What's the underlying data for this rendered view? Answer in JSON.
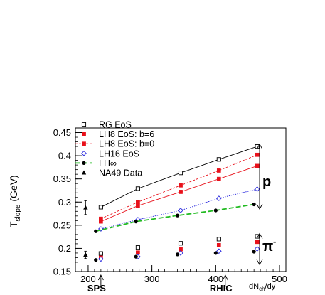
{
  "chart_data": {
    "type": "scatter",
    "title": "",
    "ylabel": "T",
    "ylabel_subscript": "slope",
    "ylabel_unit": " (GeV)",
    "xlabel": "dN",
    "xlabel_subscript": "ch",
    "xlabel_suffix": "/dy",
    "xlim": [
      180,
      510
    ],
    "ylim": [
      0.15,
      0.46
    ],
    "x_ticks": [
      200,
      300,
      400,
      500
    ],
    "y_ticks": [
      0.15,
      0.2,
      0.25,
      0.3,
      0.35,
      0.4,
      0.45
    ],
    "legend": {
      "placement": "top-left",
      "entries": [
        {
          "label": "RG EoS",
          "marker": "open-square",
          "color": "#000000",
          "line": "none"
        },
        {
          "label": "LH8 EoS: b=6",
          "marker": "filled-square",
          "color": "#e8101a",
          "line": "solid"
        },
        {
          "label": "LH8 EoS: b=0",
          "marker": "filled-square",
          "color": "#e8101a",
          "line": "dashed"
        },
        {
          "label": "LH16 EoS",
          "marker": "open-diamond",
          "color": "#2222dd",
          "line": "none"
        },
        {
          "label": "LH∞",
          "marker": "filled-circle",
          "color": "#000000",
          "line": "solid"
        },
        {
          "label": "NA49 Data",
          "marker": "filled-triangle",
          "color": "#000000",
          "line": "none"
        }
      ]
    },
    "series": [
      {
        "name": "RG EoS",
        "group": "p",
        "marker": "open-square",
        "color": "#000000",
        "line": "solid",
        "line_color": "#000000",
        "x": [
          220,
          278,
          345,
          405,
          465
        ],
        "y": [
          0.289,
          0.329,
          0.363,
          0.392,
          0.42
        ]
      },
      {
        "name": "LH8 EoS: b=0",
        "group": "p",
        "marker": "filled-square",
        "color": "#e8101a",
        "line": "dashed",
        "line_color": "#e8101a",
        "x": [
          220,
          278,
          345,
          405,
          465
        ],
        "y": [
          0.264,
          0.3,
          0.336,
          0.368,
          0.402
        ]
      },
      {
        "name": "LH8 EoS: b=6",
        "group": "p",
        "marker": "filled-square",
        "color": "#e8101a",
        "line": "solid",
        "line_color": "#e8101a",
        "x": [
          220,
          278,
          345,
          405,
          465
        ],
        "y": [
          0.258,
          0.292,
          0.322,
          0.35,
          0.378
        ]
      },
      {
        "name": "LH16 EoS",
        "group": "p",
        "marker": "open-diamond",
        "color": "#2222dd",
        "line": "dotted",
        "line_color": "#2222dd",
        "x": [
          220,
          278,
          345,
          405,
          465
        ],
        "y": [
          0.242,
          0.262,
          0.282,
          0.308,
          0.328
        ]
      },
      {
        "name": "LH∞",
        "group": "p",
        "marker": "filled-circle",
        "color": "#000000",
        "line": "dashed-green",
        "line_color": "#22bb22",
        "x": [
          212,
          275,
          340,
          400,
          460
        ],
        "y": [
          0.237,
          0.258,
          0.271,
          0.282,
          0.295
        ]
      },
      {
        "name": "RG EoS",
        "group": "pi-",
        "marker": "open-square",
        "color": "#000000",
        "line": "none",
        "x": [
          220,
          278,
          345,
          405,
          465
        ],
        "y": [
          0.189,
          0.202,
          0.211,
          0.22,
          0.226
        ]
      },
      {
        "name": "LH8 EoS",
        "group": "pi-",
        "marker": "filled-square",
        "color": "#e8101a",
        "line": "none",
        "x": [
          220,
          278,
          345,
          405,
          465
        ],
        "y": [
          0.18,
          0.191,
          0.198,
          0.207,
          0.214
        ]
      },
      {
        "name": "LH16 EoS",
        "group": "pi-",
        "marker": "open-diamond",
        "color": "#2222dd",
        "line": "none",
        "x": [
          220,
          278,
          345,
          405,
          465
        ],
        "y": [
          0.177,
          0.182,
          0.19,
          0.194,
          0.199
        ]
      },
      {
        "name": "LH∞",
        "group": "pi-",
        "marker": "filled-circle",
        "color": "#000000",
        "line": "none",
        "x": [
          212,
          275,
          340,
          400,
          460
        ],
        "y": [
          0.175,
          0.182,
          0.187,
          0.19,
          0.193
        ]
      },
      {
        "name": "NA49 Data",
        "group": "data",
        "marker": "filled-triangle",
        "color": "#000000",
        "line": "none",
        "x": [
          196,
          196
        ],
        "y": [
          0.288,
          0.186
        ],
        "y_err": [
          0.015,
          0.008
        ]
      }
    ],
    "annotations": {
      "proton_label": "p",
      "pion_label": "π",
      "pion_charge": "-",
      "sps_label": "SPS",
      "sps_x": 220,
      "rhic_label": "RHIC",
      "rhic_x": 415,
      "proton_range": [
        0.285,
        0.425
      ],
      "pion_range": [
        0.165,
        0.232
      ]
    }
  }
}
